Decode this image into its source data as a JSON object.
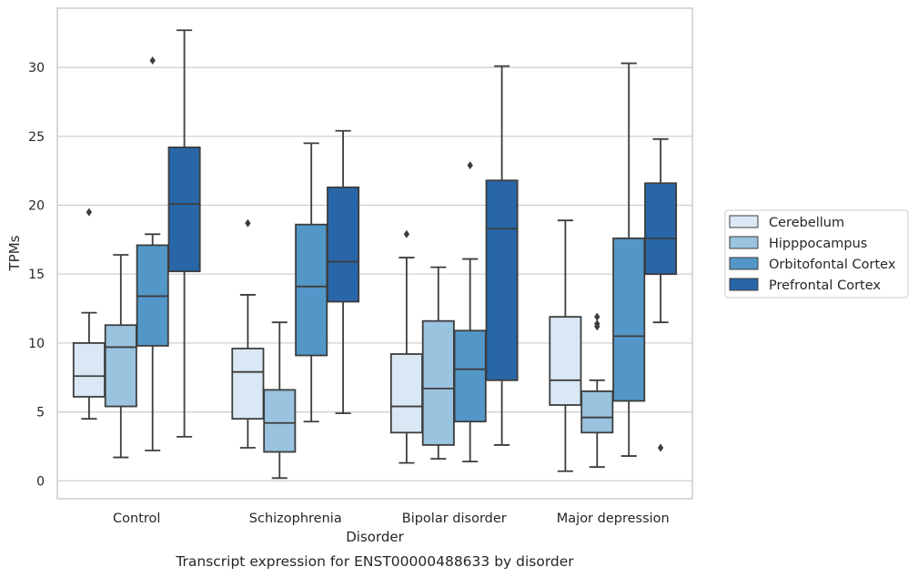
{
  "chart_data": {
    "type": "box",
    "title": "",
    "caption": "Transcript expression for ENST00000488633 by disorder",
    "xlabel": "Disorder",
    "ylabel": "TPMs",
    "ylim": [
      -1.3,
      34.3
    ],
    "yticks": [
      0,
      5,
      10,
      15,
      20,
      25,
      30
    ],
    "grid": "horizontal",
    "legend_position": "right",
    "categories": [
      "Control",
      "Schizophrenia",
      "Bipolar disorder",
      "Major depression"
    ],
    "series": [
      {
        "name": "Cerebellum",
        "color": "#dae8f5",
        "boxes": [
          {
            "whisker_low": 4.5,
            "q1": 6.1,
            "median": 7.6,
            "q3": 10.0,
            "whisker_high": 12.2,
            "outliers": [
              19.5
            ]
          },
          {
            "whisker_low": 2.4,
            "q1": 4.5,
            "median": 7.9,
            "q3": 9.6,
            "whisker_high": 13.5,
            "outliers": [
              18.7
            ]
          },
          {
            "whisker_low": 1.3,
            "q1": 3.5,
            "median": 5.4,
            "q3": 9.2,
            "whisker_high": 16.2,
            "outliers": [
              17.9
            ]
          },
          {
            "whisker_low": 0.7,
            "q1": 5.5,
            "median": 7.3,
            "q3": 11.9,
            "whisker_high": 18.9,
            "outliers": []
          }
        ]
      },
      {
        "name": "Hipppocampus",
        "color": "#99c3df",
        "boxes": [
          {
            "whisker_low": 1.7,
            "q1": 5.4,
            "median": 9.7,
            "q3": 11.3,
            "whisker_high": 16.4,
            "outliers": []
          },
          {
            "whisker_low": 0.2,
            "q1": 2.1,
            "median": 4.2,
            "q3": 6.6,
            "whisker_high": 11.5,
            "outliers": []
          },
          {
            "whisker_low": 1.6,
            "q1": 2.6,
            "median": 6.7,
            "q3": 11.6,
            "whisker_high": 15.5,
            "outliers": []
          },
          {
            "whisker_low": 1.0,
            "q1": 3.5,
            "median": 4.6,
            "q3": 6.5,
            "whisker_high": 7.3,
            "outliers": [
              11.2,
              11.4,
              11.9
            ]
          }
        ]
      },
      {
        "name": "Orbitofontal Cortex",
        "color": "#5397c8",
        "boxes": [
          {
            "whisker_low": 2.2,
            "q1": 9.8,
            "median": 13.4,
            "q3": 17.1,
            "whisker_high": 17.9,
            "outliers": [
              30.5
            ]
          },
          {
            "whisker_low": 4.3,
            "q1": 9.1,
            "median": 14.1,
            "q3": 18.6,
            "whisker_high": 24.5,
            "outliers": []
          },
          {
            "whisker_low": 1.4,
            "q1": 4.3,
            "median": 8.1,
            "q3": 10.9,
            "whisker_high": 16.1,
            "outliers": [
              22.9
            ]
          },
          {
            "whisker_low": 1.8,
            "q1": 5.8,
            "median": 10.5,
            "q3": 17.6,
            "whisker_high": 30.3,
            "outliers": []
          }
        ]
      },
      {
        "name": "Prefrontal Cortex",
        "color": "#2866a8",
        "boxes": [
          {
            "whisker_low": 3.2,
            "q1": 15.2,
            "median": 20.1,
            "q3": 24.2,
            "whisker_high": 32.7,
            "outliers": []
          },
          {
            "whisker_low": 4.9,
            "q1": 13.0,
            "median": 15.9,
            "q3": 21.3,
            "whisker_high": 25.4,
            "outliers": []
          },
          {
            "whisker_low": 2.6,
            "q1": 7.3,
            "median": 18.3,
            "q3": 21.8,
            "whisker_high": 30.1,
            "outliers": []
          },
          {
            "whisker_low": 11.5,
            "q1": 15.0,
            "median": 17.6,
            "q3": 21.6,
            "whisker_high": 24.8,
            "outliers": [
              2.4
            ]
          }
        ]
      }
    ]
  }
}
